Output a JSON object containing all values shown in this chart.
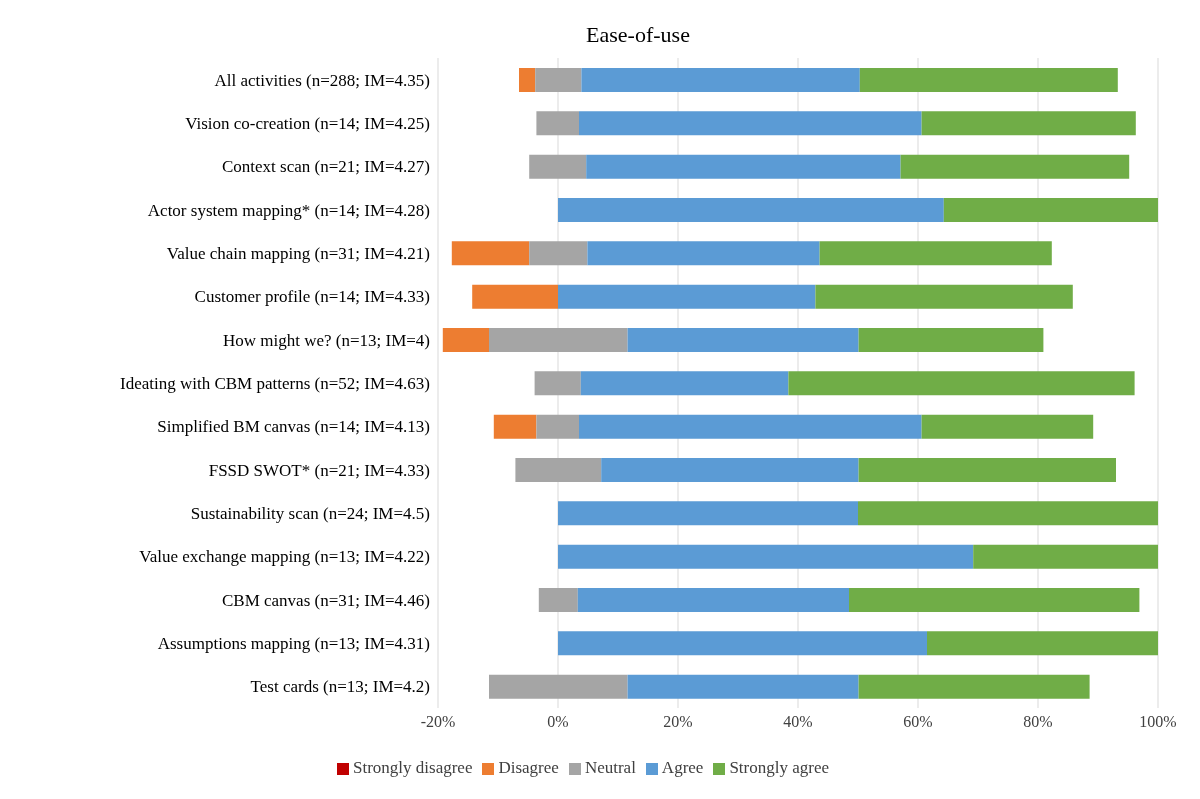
{
  "chart_data": {
    "type": "bar",
    "title": "Ease-of-use",
    "orientation": "horizontal",
    "categories": [
      "All activities (n=288; IM=4.35)",
      "Vision co-creation (n=14; IM=4.25)",
      "Context scan (n=21; IM=4.27)",
      "Actor system mapping* (n=14; IM=4.28)",
      "Value chain mapping (n=31; IM=4.21)",
      "Customer profile (n=14; IM=4.33)",
      "How might we? (n=13; IM=4)",
      "Ideating with CBM patterns (n=52; IM=4.63)",
      "Simplified BM canvas (n=14; IM=4.13)",
      "FSSD SWOT* (n=21; IM=4.33)",
      "Sustainability scan (n=24; IM=4.5)",
      "Value exchange mapping (n=13; IM=4.22)",
      "CBM canvas (n=31; IM=4.46)",
      "Assumptions mapping (n=13; IM=4.31)",
      "Test cards (n=13; IM=4.2)"
    ],
    "series": [
      {
        "name": "Strongly disagree",
        "color": "#c00000",
        "values": [
          null,
          null,
          null,
          null,
          null,
          null,
          null,
          null,
          null,
          null,
          null,
          null,
          null,
          null,
          null
        ]
      },
      {
        "name": "Disagree",
        "color": "#ed7d31",
        "base": [
          -6.5,
          null,
          null,
          null,
          -17.7,
          -14.3,
          -19.2,
          null,
          -10.7,
          null,
          null,
          null,
          null,
          null,
          null
        ],
        "values": [
          2.7,
          null,
          null,
          null,
          12.9,
          14.3,
          7.7,
          null,
          7.1,
          null,
          null,
          null,
          null,
          null,
          null
        ]
      },
      {
        "name": "Neutral",
        "color": "#a5a5a5",
        "base": [
          -3.8,
          -3.6,
          -4.8,
          null,
          -4.8,
          null,
          -11.5,
          -3.9,
          -3.6,
          -7.1,
          null,
          null,
          -3.2,
          null,
          -11.5
        ],
        "values": [
          7.7,
          7.1,
          9.5,
          null,
          9.7,
          null,
          23.1,
          7.7,
          7.1,
          14.3,
          null,
          null,
          6.5,
          null,
          23.1
        ]
      },
      {
        "name": "Agree",
        "color": "#5b9bd5",
        "base": [
          3.9,
          3.5,
          4.7,
          0,
          4.9,
          0,
          11.6,
          3.8,
          3.5,
          7.2,
          0,
          0,
          3.3,
          0,
          11.6
        ],
        "values": [
          46.4,
          57.1,
          52.4,
          64.3,
          38.7,
          42.9,
          38.5,
          34.6,
          57.1,
          42.9,
          50,
          69.2,
          45.2,
          61.5,
          38.5
        ]
      },
      {
        "name": "Strongly agree",
        "color": "#70ad47",
        "base": [
          50.3,
          60.6,
          57.1,
          64.3,
          43.6,
          42.9,
          50.1,
          38.4,
          60.6,
          50.1,
          50,
          69.2,
          48.5,
          61.5,
          50.1
        ],
        "values": [
          43,
          35.7,
          38.1,
          35.7,
          38.7,
          42.9,
          30.8,
          57.7,
          28.6,
          42.9,
          50,
          30.8,
          48.4,
          38.5,
          38.5
        ]
      }
    ],
    "xlim": [
      -20,
      100
    ],
    "xticks": [
      {
        "value": -20,
        "label": "-20%"
      },
      {
        "value": 0,
        "label": "0%"
      },
      {
        "value": 20,
        "label": "20%"
      },
      {
        "value": 40,
        "label": "40%"
      },
      {
        "value": 60,
        "label": "60%"
      },
      {
        "value": 80,
        "label": "80%"
      },
      {
        "value": 100,
        "label": "100%"
      }
    ],
    "grid": "x",
    "legend": "bottom"
  }
}
